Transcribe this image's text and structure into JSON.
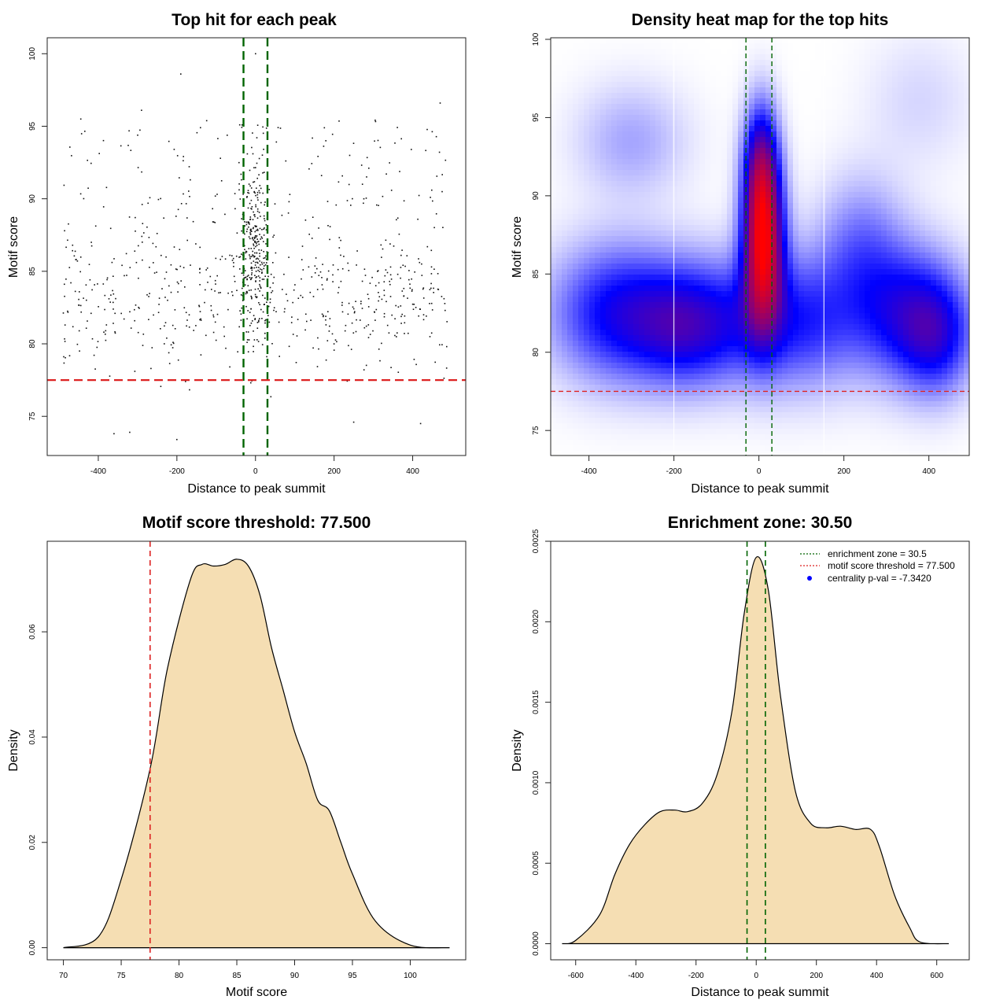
{
  "chart_data": [
    {
      "id": "scatter",
      "type": "scatter",
      "title": "Top hit for each peak",
      "xlabel": "Distance to peak summit",
      "ylabel": "Motif score",
      "xlim": [
        -530,
        535
      ],
      "ylim": [
        72.3,
        101.1
      ],
      "xticks": [
        -400,
        -200,
        0,
        200,
        400
      ],
      "yticks": [
        75,
        80,
        85,
        90,
        95,
        100
      ],
      "vlines": [
        -30.5,
        30.5
      ],
      "hline": 77.5,
      "n_points": 1000,
      "sample_points": [
        [
          -190,
          98.6
        ],
        [
          470,
          96.6
        ],
        [
          0,
          100.0
        ],
        [
          -290,
          96.1
        ],
        [
          -140,
          94.9
        ],
        [
          -200,
          73.4
        ],
        [
          -360,
          73.8
        ],
        [
          -320,
          73.9
        ],
        [
          420,
          74.5
        ],
        [
          250,
          74.6
        ]
      ]
    },
    {
      "id": "heatmap",
      "type": "heatmap",
      "title": "Density heat map for the top hits",
      "xlabel": "Distance to peak summit",
      "ylabel": "Motif score",
      "xlim": [
        -490,
        495
      ],
      "ylim": [
        73.4,
        100.1
      ],
      "xticks": [
        -400,
        -200,
        0,
        200,
        400
      ],
      "yticks": [
        75,
        80,
        85,
        90,
        95,
        100
      ],
      "vlines": [
        -30.5,
        30.5
      ],
      "hline": 77.5,
      "white_vlines": [
        -200,
        153
      ]
    },
    {
      "id": "score-density",
      "type": "area",
      "title": "Motif score threshold: 77.500",
      "xlabel": "Motif score",
      "ylabel": "Density",
      "xlim": [
        68.6,
        104.8
      ],
      "ylim": [
        -0.0023,
        0.0772
      ],
      "xticks": [
        70,
        75,
        80,
        85,
        90,
        95,
        100
      ],
      "ytick_labels": [
        "0.00",
        "0.02",
        "0.04",
        "0.06"
      ],
      "vline": 77.5,
      "x": [
        70.0,
        73.0,
        75.0,
        77.5,
        79.0,
        81.0,
        82.0,
        83.0,
        84.0,
        85.0,
        86.0,
        87.0,
        88.0,
        89.0,
        90.0,
        91.0,
        92.0,
        93.0,
        94.0,
        95.0,
        97.0,
        100.0,
        103.4
      ],
      "values": [
        0.0,
        0.002,
        0.013,
        0.034,
        0.053,
        0.07,
        0.0728,
        0.0725,
        0.0728,
        0.0738,
        0.0725,
        0.067,
        0.057,
        0.049,
        0.041,
        0.035,
        0.028,
        0.026,
        0.02,
        0.014,
        0.005,
        0.0005,
        0.0
      ]
    },
    {
      "id": "distance-density",
      "type": "area",
      "title": "Enrichment zone: 30.50",
      "xlabel": "Distance to peak summit",
      "ylabel": "Density",
      "xlim": [
        -683,
        708
      ],
      "ylim": [
        -0.0001,
        0.0025
      ],
      "xticks": [
        -600,
        -400,
        -200,
        0,
        200,
        400,
        600
      ],
      "ytick_labels": [
        "0.0000",
        "0.0005",
        "0.0010",
        "0.0015",
        "0.0020",
        "0.0025"
      ],
      "vlines": [
        -30.5,
        30.5
      ],
      "x": [
        -645,
        -600,
        -520,
        -470,
        -420,
        -370,
        -320,
        -270,
        -230,
        -180,
        -130,
        -80,
        -40,
        0,
        40,
        80,
        130,
        180,
        230,
        280,
        330,
        380,
        410,
        460,
        510,
        545,
        640
      ],
      "values": [
        0.0,
        2e-05,
        0.00018,
        0.00043,
        0.00062,
        0.00074,
        0.00082,
        0.00083,
        0.00082,
        0.00087,
        0.00105,
        0.00145,
        0.00205,
        0.0024,
        0.0022,
        0.00155,
        0.00095,
        0.00075,
        0.00072,
        0.00073,
        0.00071,
        0.00071,
        0.0006,
        0.0003,
        0.0001,
        1e-05,
        0.0
      ],
      "legend": {
        "position": "top-right",
        "entries": [
          {
            "label": "enrichment zone = 30.5",
            "color": "#006400",
            "style": "dotted-line"
          },
          {
            "label": "motif score threshold = 77.500",
            "color": "#dd2222",
            "style": "dotted-line"
          },
          {
            "label": "centrality p-val = -7.3420",
            "color": "#0000ff",
            "style": "point"
          }
        ]
      }
    }
  ],
  "colors": {
    "green_line": "#006400",
    "red_line": "#dd2222",
    "fill": "#f5deb3",
    "heat_low": "#ffffff",
    "heat_mid": "#0000ff",
    "heat_high": "#ff0000"
  }
}
